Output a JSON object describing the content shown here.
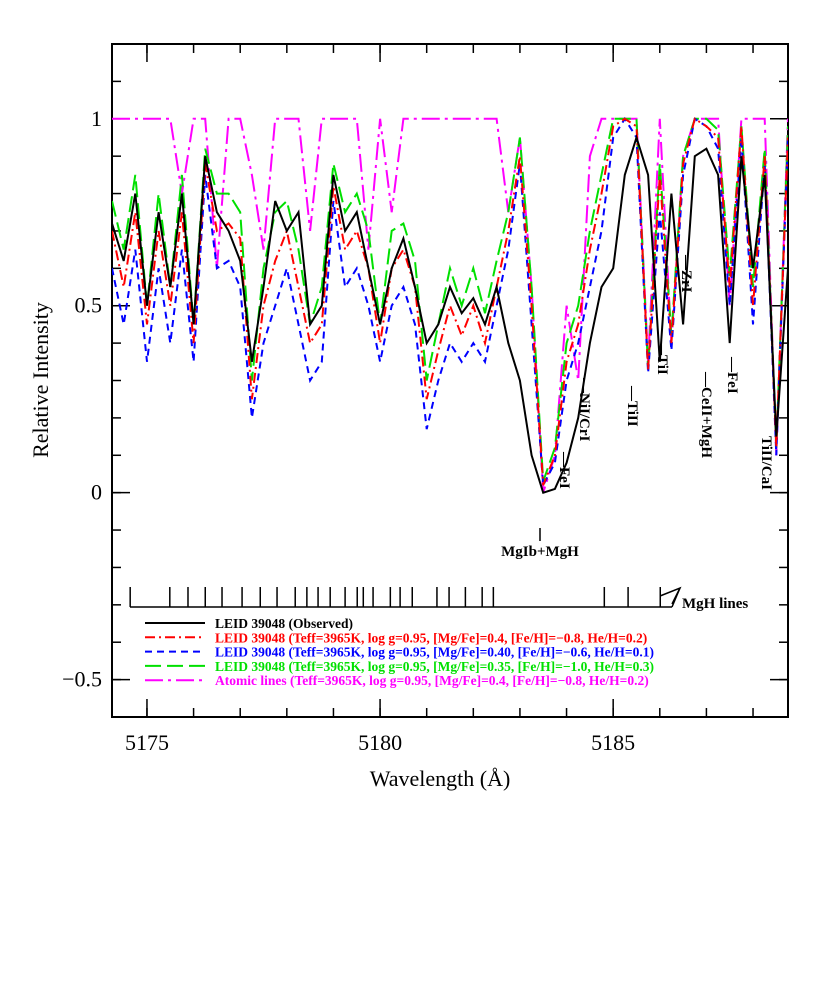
{
  "chart_data": {
    "type": "line",
    "xlabel": "Wavelength (Å)",
    "ylabel": "Relative Intensity",
    "xlim": [
      5174.25,
      5188.75
    ],
    "ylim": [
      -0.6,
      1.2
    ],
    "xticks": [
      5175,
      5180,
      5185
    ],
    "yticks": [
      {
        "value": -0.5,
        "label": "−0.5"
      },
      0,
      0.5,
      1
    ],
    "xminorticks": [
      5175,
      5176,
      5177,
      5178,
      5179,
      5180,
      5181,
      5182,
      5183,
      5184,
      5185,
      5186,
      5187,
      5188
    ],
    "yminorticks": [
      -0.5,
      -0.4,
      -0.3,
      -0.2,
      -0.1,
      0,
      0.1,
      0.2,
      0.3,
      0.4,
      0.5,
      0.6,
      0.7,
      0.8,
      0.9,
      1,
      1.1
    ],
    "x": [
      5174.25,
      5174.5,
      5174.75,
      5175,
      5175.25,
      5175.5,
      5175.75,
      5176,
      5176.25,
      5176.5,
      5176.75,
      5177,
      5177.25,
      5177.5,
      5177.75,
      5178,
      5178.25,
      5178.5,
      5178.75,
      5179,
      5179.25,
      5179.5,
      5179.75,
      5180,
      5180.25,
      5180.5,
      5180.75,
      5181,
      5181.25,
      5181.5,
      5181.75,
      5182,
      5182.25,
      5182.5,
      5182.75,
      5183,
      5183.25,
      5183.5,
      5183.75,
      5184,
      5184.25,
      5184.5,
      5184.75,
      5185,
      5185.25,
      5185.5,
      5185.75,
      5186,
      5186.25,
      5186.5,
      5186.75,
      5187,
      5187.25,
      5187.5,
      5187.75,
      5188,
      5188.25,
      5188.5,
      5188.75
    ],
    "series": [
      {
        "name": "LEID 39048  (Observed)",
        "color": "#000000",
        "dash": "none",
        "values": [
          0.72,
          0.62,
          0.8,
          0.5,
          0.75,
          0.55,
          0.8,
          0.45,
          0.9,
          0.75,
          0.7,
          0.62,
          0.35,
          0.55,
          0.78,
          0.7,
          0.75,
          0.45,
          0.5,
          0.85,
          0.7,
          0.75,
          0.6,
          0.45,
          0.6,
          0.68,
          0.55,
          0.4,
          0.45,
          0.55,
          0.48,
          0.52,
          0.45,
          0.55,
          0.4,
          0.3,
          0.1,
          0.0,
          0.01,
          0.08,
          0.2,
          0.4,
          0.55,
          0.6,
          0.85,
          0.95,
          0.85,
          0.35,
          0.8,
          0.45,
          0.9,
          0.92,
          0.85,
          0.4,
          0.9,
          0.6,
          0.85,
          0.15,
          0.6
        ]
      },
      {
        "name": "LEID 39048 (Teff=3965K, log g=0.95, [Mg/Fe]=0.4, [Fe/H]=−0.8, He/H=0.2)",
        "color": "#ff0000",
        "dash": "10,4,2,4",
        "values": [
          0.7,
          0.55,
          0.75,
          0.45,
          0.7,
          0.5,
          0.75,
          0.4,
          0.88,
          0.7,
          0.72,
          0.68,
          0.25,
          0.5,
          0.62,
          0.7,
          0.55,
          0.4,
          0.45,
          0.82,
          0.65,
          0.7,
          0.6,
          0.4,
          0.6,
          0.65,
          0.55,
          0.25,
          0.38,
          0.5,
          0.42,
          0.5,
          0.4,
          0.55,
          0.7,
          0.9,
          0.5,
          0.02,
          0.1,
          0.35,
          0.45,
          0.65,
          0.8,
          0.98,
          1.0,
          0.98,
          0.33,
          0.85,
          0.4,
          0.88,
          1.0,
          0.98,
          0.95,
          0.55,
          0.98,
          0.5,
          0.9,
          0.12,
          0.95
        ]
      },
      {
        "name": "LEID 39048 (Teff=3965K, log g=0.95, [Mg/Fe]=0.40, [Fe/H]=−0.6, He/H=0.1)",
        "color": "#0000ff",
        "dash": "7,5",
        "values": [
          0.6,
          0.45,
          0.65,
          0.35,
          0.6,
          0.4,
          0.65,
          0.35,
          0.85,
          0.6,
          0.62,
          0.55,
          0.2,
          0.4,
          0.5,
          0.6,
          0.45,
          0.3,
          0.35,
          0.78,
          0.55,
          0.6,
          0.5,
          0.35,
          0.5,
          0.55,
          0.45,
          0.17,
          0.3,
          0.4,
          0.35,
          0.4,
          0.35,
          0.5,
          0.65,
          0.88,
          0.45,
          0.02,
          0.08,
          0.3,
          0.4,
          0.55,
          0.7,
          0.95,
          1.0,
          0.95,
          0.32,
          0.75,
          0.38,
          0.85,
          1.0,
          0.98,
          0.92,
          0.5,
          0.95,
          0.45,
          0.88,
          0.1,
          0.95
        ]
      },
      {
        "name": "LEID 39048 (Teff=3965K, log g=0.95, [Mg/Fe]=0.35, [Fe/H]=−1.0, He/H=0.3)",
        "color": "#00e000",
        "dash": "16,6",
        "values": [
          0.78,
          0.65,
          0.85,
          0.5,
          0.8,
          0.55,
          0.85,
          0.45,
          0.92,
          0.8,
          0.8,
          0.75,
          0.3,
          0.6,
          0.75,
          0.78,
          0.65,
          0.45,
          0.55,
          0.88,
          0.75,
          0.8,
          0.7,
          0.45,
          0.7,
          0.72,
          0.62,
          0.3,
          0.45,
          0.6,
          0.5,
          0.6,
          0.48,
          0.62,
          0.75,
          0.95,
          0.55,
          0.03,
          0.12,
          0.4,
          0.5,
          0.7,
          0.85,
          1.0,
          1.0,
          1.0,
          0.33,
          0.88,
          0.42,
          0.9,
          1.0,
          1.0,
          0.97,
          0.58,
          0.98,
          0.55,
          0.92,
          0.12,
          0.98
        ]
      },
      {
        "name": "Atomic lines (Teff=3965K, log g=0.95, [Mg/Fe]=0.4, [Fe/H]=−0.8, He/H=0.2)",
        "color": "#ff00ff",
        "dash": "18,5,3,5",
        "values": [
          1,
          1,
          1,
          1,
          1,
          1,
          0.8,
          1,
          1,
          0.6,
          1,
          1,
          0.85,
          0.65,
          1,
          1,
          1,
          0.7,
          1,
          1,
          1,
          1,
          0.65,
          1,
          0.75,
          1,
          1,
          1,
          1,
          1,
          1,
          1,
          1,
          1,
          0.75,
          0.95,
          0.55,
          0.0,
          0.1,
          0.5,
          0.3,
          0.9,
          1,
          1,
          1,
          1,
          0.35,
          1,
          0.4,
          0.9,
          1,
          1,
          1,
          0.5,
          1,
          1,
          1,
          0.1,
          1
        ]
      }
    ],
    "annotations": [
      "MgIb+MgH",
      "—FeI",
      "—NiI/CrI",
      "—TiII",
      "—TiI",
      "—ZrI",
      "—CeII+MgH",
      "—FeI",
      "TiII/CaI"
    ],
    "mgh_label": "MgH lines",
    "mgh_lines": [
      5174.64,
      5175.49,
      5175.88,
      5176.25,
      5176.61,
      5177.04,
      5177.43,
      5177.79,
      5178.18,
      5178.43,
      5178.67,
      5178.93,
      5179.25,
      5179.51,
      5179.64,
      5179.85,
      5180.22,
      5180.43,
      5180.69,
      5181.22,
      5181.48,
      5181.83,
      5182.19,
      5182.43,
      5184.81,
      5185.32,
      5186.01
    ]
  }
}
